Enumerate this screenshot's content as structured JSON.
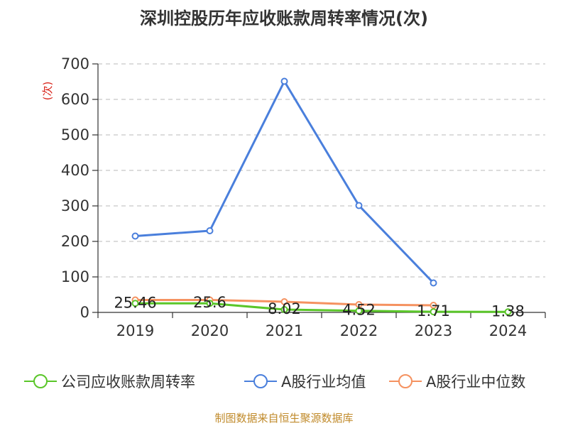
{
  "chart_data": {
    "type": "line",
    "title": "深圳控股历年应收账款周转率情况(次)",
    "ylabel": "(次)",
    "xlabel": "",
    "categories": [
      "2019",
      "2020",
      "2021",
      "2022",
      "2023",
      "2024"
    ],
    "ylim": [
      0,
      700
    ],
    "yticks": [
      0,
      100,
      200,
      300,
      400,
      500,
      600,
      700
    ],
    "grid": true,
    "legend_position": "bottom",
    "series": [
      {
        "name": "公司应收账款周转率",
        "color": "#5ac629",
        "values": [
          25.46,
          25.6,
          8.02,
          4.52,
          1.71,
          1.38
        ],
        "labels": [
          "25.46",
          "25.6",
          "8.02",
          "4.52",
          "1.71",
          "1.38"
        ]
      },
      {
        "name": "A股行业均值",
        "color": "#4a7fdc",
        "values": [
          215,
          230,
          651,
          301,
          83,
          null
        ]
      },
      {
        "name": "A股行业中位数",
        "color": "#f59260",
        "values": [
          35,
          35,
          30,
          22,
          20,
          null
        ]
      }
    ]
  },
  "footer": {
    "source": "制图数据来自恒生聚源数据库"
  }
}
